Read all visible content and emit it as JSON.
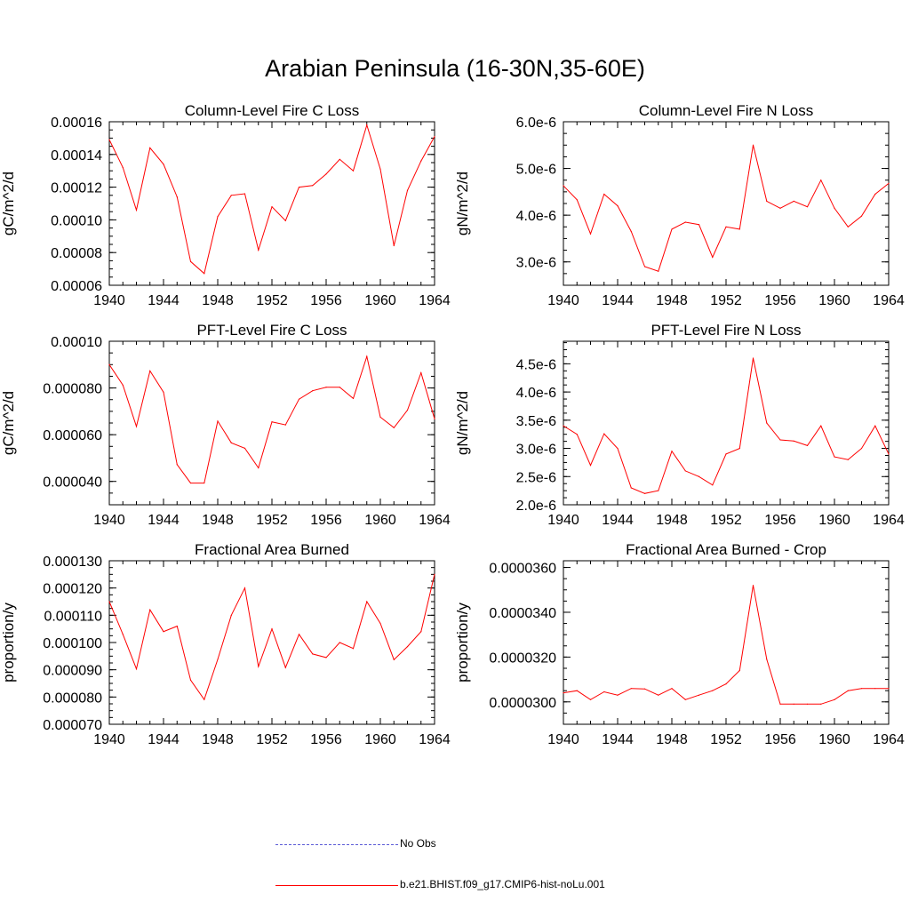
{
  "figure": {
    "title": "Arabian Peninsula (16-30N,35-60E)"
  },
  "legend": [
    {
      "label": "No Obs",
      "color": "#5b5bd6",
      "style": "dashed"
    },
    {
      "label": "b.e21.BHIST.f09_g17.CMIP6-hist-noLu.001",
      "color": "#ff0000",
      "style": "solid"
    }
  ],
  "chart_data": [
    {
      "type": "line",
      "title": "Column-Level Fire C Loss",
      "ylabel": "gC/m^2/d",
      "xlabel": "",
      "xlim": [
        1940,
        1964
      ],
      "ylim": [
        6e-05,
        0.00016
      ],
      "xticks": [
        "1940",
        "1944",
        "1948",
        "1952",
        "1956",
        "1960",
        "1964"
      ],
      "yticks": [
        {
          "value": 6e-05,
          "label": "0.00006"
        },
        {
          "value": 8e-05,
          "label": "0.00008"
        },
        {
          "value": 0.0001,
          "label": "0.00010"
        },
        {
          "value": 0.00012,
          "label": "0.00012"
        },
        {
          "value": 0.00014,
          "label": "0.00014"
        },
        {
          "value": 0.00016,
          "label": "0.00016"
        }
      ],
      "series": [
        {
          "name": "b.e21.BHIST.f09_g17.CMIP6-hist-noLu.001",
          "color": "#ff0000",
          "x": [
            1940,
            1941,
            1942,
            1943,
            1944,
            1945,
            1946,
            1947,
            1948,
            1949,
            1950,
            1951,
            1952,
            1953,
            1954,
            1955,
            1956,
            1957,
            1958,
            1959,
            1960,
            1961,
            1962,
            1963,
            1964
          ],
          "values": [
            0.000149,
            0.000132,
            0.000106,
            0.000144,
            0.000134,
            0.000114,
            7.45e-05,
            6.72e-05,
            0.000102,
            0.000115,
            0.000116,
            8.15e-05,
            0.000108,
            9.95e-05,
            0.00012,
            0.000121,
            0.000128,
            0.000137,
            0.00013,
            0.000158,
            0.000131,
            8.42e-05,
            0.000118,
            0.000136,
            0.000151
          ]
        }
      ]
    },
    {
      "type": "line",
      "title": "Column-Level Fire N Loss",
      "ylabel": "gN/m^2/d",
      "xlabel": "",
      "xlim": [
        1940,
        1964
      ],
      "ylim": [
        2.5e-06,
        6e-06
      ],
      "xticks": [
        "1940",
        "1944",
        "1948",
        "1952",
        "1956",
        "1960",
        "1964"
      ],
      "yticks": [
        {
          "value": 3e-06,
          "label": "3.0e-6"
        },
        {
          "value": 4e-06,
          "label": "4.0e-6"
        },
        {
          "value": 5e-06,
          "label": "5.0e-6"
        },
        {
          "value": 6e-06,
          "label": "6.0e-6"
        }
      ],
      "series": [
        {
          "name": "b.e21.BHIST.f09_g17.CMIP6-hist-noLu.001",
          "color": "#ff0000",
          "x": [
            1940,
            1941,
            1942,
            1943,
            1944,
            1945,
            1946,
            1947,
            1948,
            1949,
            1950,
            1951,
            1952,
            1953,
            1954,
            1955,
            1956,
            1957,
            1958,
            1959,
            1960,
            1961,
            1962,
            1963,
            1964
          ],
          "values": [
            4.63e-06,
            4.33e-06,
            3.6e-06,
            4.45e-06,
            4.2e-06,
            3.65e-06,
            2.9e-06,
            2.8e-06,
            3.7e-06,
            3.85e-06,
            3.8e-06,
            3.1e-06,
            3.75e-06,
            3.7e-06,
            5.5e-06,
            4.3e-06,
            4.15e-06,
            4.3e-06,
            4.18e-06,
            4.75e-06,
            4.15e-06,
            3.75e-06,
            3.98e-06,
            4.45e-06,
            4.68e-06
          ]
        }
      ]
    },
    {
      "type": "line",
      "title": "PFT-Level Fire C Loss",
      "ylabel": "gC/m^2/d",
      "xlabel": "",
      "xlim": [
        1940,
        1964
      ],
      "ylim": [
        3e-05,
        0.0001
      ],
      "xticks": [
        "1940",
        "1944",
        "1948",
        "1952",
        "1956",
        "1960",
        "1964"
      ],
      "yticks": [
        {
          "value": 4e-05,
          "label": "0.000040"
        },
        {
          "value": 6e-05,
          "label": "0.000060"
        },
        {
          "value": 8e-05,
          "label": "0.000080"
        },
        {
          "value": 0.0001,
          "label": "0.00010"
        }
      ],
      "series": [
        {
          "name": "b.e21.BHIST.f09_g17.CMIP6-hist-noLu.001",
          "color": "#ff0000",
          "x": [
            1940,
            1941,
            1942,
            1943,
            1944,
            1945,
            1946,
            1947,
            1948,
            1949,
            1950,
            1951,
            1952,
            1953,
            1954,
            1955,
            1956,
            1957,
            1958,
            1959,
            1960,
            1961,
            1962,
            1963,
            1964
          ],
          "values": [
            9e-05,
            8.12e-05,
            6.35e-05,
            8.73e-05,
            7.82e-05,
            4.72e-05,
            3.93e-05,
            3.93e-05,
            6.58e-05,
            5.65e-05,
            5.42e-05,
            4.58e-05,
            6.55e-05,
            6.42e-05,
            7.52e-05,
            7.88e-05,
            8.03e-05,
            8.03e-05,
            7.55e-05,
            9.35e-05,
            6.75e-05,
            6.3e-05,
            7.05e-05,
            8.65e-05,
            6.68e-05
          ]
        }
      ]
    },
    {
      "type": "line",
      "title": "PFT-Level Fire N Loss",
      "ylabel": "gN/m^2/d",
      "xlabel": "",
      "xlim": [
        1940,
        1964
      ],
      "ylim": [
        2e-06,
        4.9e-06
      ],
      "xticks": [
        "1940",
        "1944",
        "1948",
        "1952",
        "1956",
        "1960",
        "1964"
      ],
      "yticks": [
        {
          "value": 2e-06,
          "label": "2.0e-6"
        },
        {
          "value": 2.5e-06,
          "label": "2.5e-6"
        },
        {
          "value": 3e-06,
          "label": "3.0e-6"
        },
        {
          "value": 3.5e-06,
          "label": "3.5e-6"
        },
        {
          "value": 4e-06,
          "label": "4.0e-6"
        },
        {
          "value": 4.5e-06,
          "label": "4.5e-6"
        }
      ],
      "series": [
        {
          "name": "b.e21.BHIST.f09_g17.CMIP6-hist-noLu.001",
          "color": "#ff0000",
          "x": [
            1940,
            1941,
            1942,
            1943,
            1944,
            1945,
            1946,
            1947,
            1948,
            1949,
            1950,
            1951,
            1952,
            1953,
            1954,
            1955,
            1956,
            1957,
            1958,
            1959,
            1960,
            1961,
            1962,
            1963,
            1964
          ],
          "values": [
            3.4e-06,
            3.25e-06,
            2.7e-06,
            3.26e-06,
            3e-06,
            2.3e-06,
            2.2e-06,
            2.25e-06,
            2.95e-06,
            2.6e-06,
            2.5e-06,
            2.35e-06,
            2.9e-06,
            3e-06,
            4.6e-06,
            3.45e-06,
            3.15e-06,
            3.13e-06,
            3.05e-06,
            3.4e-06,
            2.85e-06,
            2.8e-06,
            3e-06,
            3.4e-06,
            2.9e-06
          ]
        }
      ]
    },
    {
      "type": "line",
      "title": "Fractional Area Burned",
      "ylabel": "proportion/y",
      "xlabel": "",
      "xlim": [
        1940,
        1964
      ],
      "ylim": [
        7e-05,
        0.00013
      ],
      "xticks": [
        "1940",
        "1944",
        "1948",
        "1952",
        "1956",
        "1960",
        "1964"
      ],
      "yticks": [
        {
          "value": 7e-05,
          "label": "0.000070"
        },
        {
          "value": 8e-05,
          "label": "0.000080"
        },
        {
          "value": 9e-05,
          "label": "0.000090"
        },
        {
          "value": 0.0001,
          "label": "0.000100"
        },
        {
          "value": 0.00011,
          "label": "0.000110"
        },
        {
          "value": 0.00012,
          "label": "0.000120"
        },
        {
          "value": 0.00013,
          "label": "0.000130"
        }
      ],
      "series": [
        {
          "name": "b.e21.BHIST.f09_g17.CMIP6-hist-noLu.001",
          "color": "#ff0000",
          "x": [
            1940,
            1941,
            1942,
            1943,
            1944,
            1945,
            1946,
            1947,
            1948,
            1949,
            1950,
            1951,
            1952,
            1953,
            1954,
            1955,
            1956,
            1957,
            1958,
            1959,
            1960,
            1961,
            1962,
            1963,
            1964
          ],
          "values": [
            0.000115,
            0.000103,
            9.03e-05,
            0.000112,
            0.000104,
            0.000106,
            8.62e-05,
            7.91e-05,
            9.38e-05,
            0.00011,
            0.00012,
            9.12e-05,
            0.000105,
            9.08e-05,
            0.000103,
            9.58e-05,
            9.45e-05,
            0.0001,
            9.78e-05,
            0.000115,
            0.000107,
            9.37e-05,
            9.85e-05,
            0.000104,
            0.000125
          ]
        }
      ]
    },
    {
      "type": "line",
      "title": "Fractional Area Burned - Crop",
      "ylabel": "proportion/y",
      "xlabel": "",
      "xlim": [
        1940,
        1964
      ],
      "ylim": [
        2.9e-05,
        3.63e-05
      ],
      "xticks": [
        "1940",
        "1944",
        "1948",
        "1952",
        "1956",
        "1960",
        "1964"
      ],
      "yticks": [
        {
          "value": 3e-05,
          "label": "0.0000300"
        },
        {
          "value": 3.2e-05,
          "label": "0.0000320"
        },
        {
          "value": 3.4e-05,
          "label": "0.0000340"
        },
        {
          "value": 3.6e-05,
          "label": "0.0000360"
        }
      ],
      "series": [
        {
          "name": "b.e21.BHIST.f09_g17.CMIP6-hist-noLu.001",
          "color": "#ff0000",
          "x": [
            1940,
            1941,
            1942,
            1943,
            1944,
            1945,
            1946,
            1947,
            1948,
            1949,
            1950,
            1951,
            1952,
            1953,
            1954,
            1955,
            1956,
            1957,
            1958,
            1959,
            1960,
            1961,
            1962,
            1963,
            1964
          ],
          "values": [
            3.04e-05,
            3.05e-05,
            3.01e-05,
            3.045e-05,
            3.03e-05,
            3.06e-05,
            3.058e-05,
            3.03e-05,
            3.06e-05,
            3.01e-05,
            3.03e-05,
            3.05e-05,
            3.08e-05,
            3.14e-05,
            3.52e-05,
            3.19e-05,
            2.99e-05,
            2.99e-05,
            2.99e-05,
            2.99e-05,
            3.01e-05,
            3.05e-05,
            3.06e-05,
            3.06e-05,
            3.06e-05
          ]
        }
      ]
    }
  ]
}
